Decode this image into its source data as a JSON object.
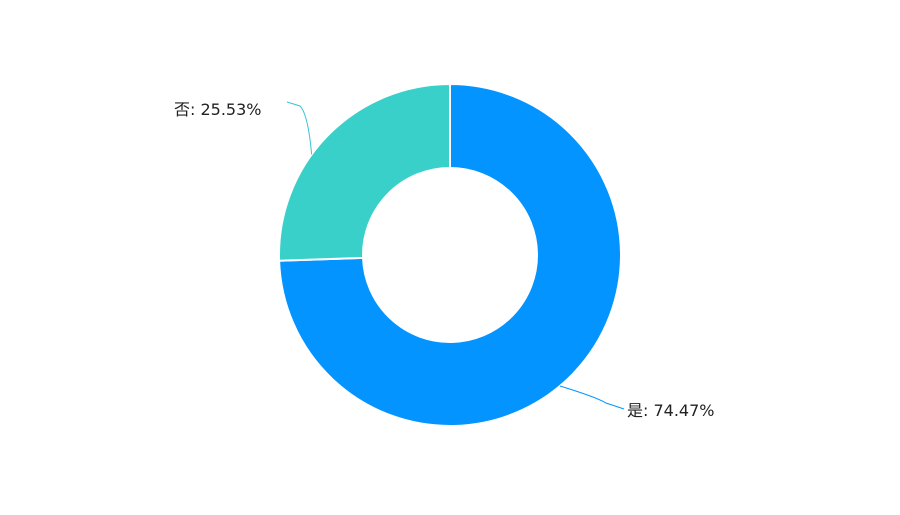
{
  "chart_data": {
    "type": "pie",
    "style": "donut",
    "slices": [
      {
        "label": "是",
        "value": 74.47,
        "display": "是: 74.47%",
        "color": "#0494ff"
      },
      {
        "label": "否",
        "value": 25.53,
        "display": "否: 25.53%",
        "color": "#39d0c9"
      }
    ],
    "label_line_color": "#39c4d6"
  }
}
